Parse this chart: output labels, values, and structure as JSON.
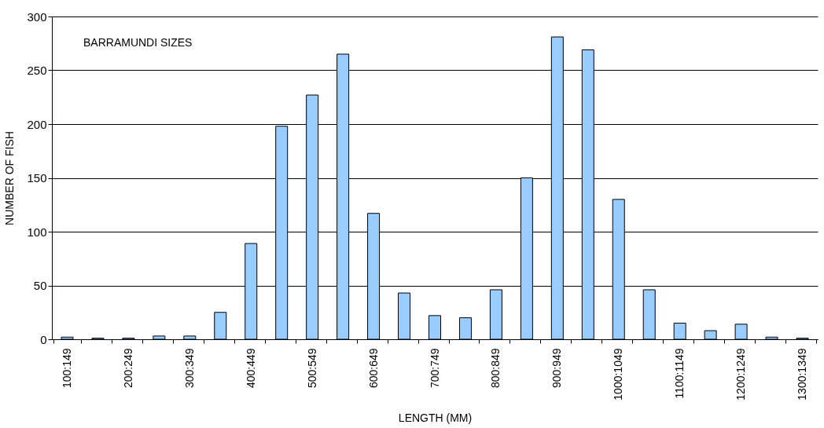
{
  "chart_data": {
    "type": "bar",
    "title": "BARRAMUNDI SIZES",
    "xlabel": "LENGTH (MM)",
    "ylabel": "NUMBER OF FISH",
    "categories": [
      "100:149",
      null,
      "200:249",
      null,
      "300:349",
      null,
      "400:449",
      null,
      "500:549",
      null,
      "600:649",
      null,
      "700:749",
      null,
      "800:849",
      null,
      "900:949",
      null,
      "1000:1049",
      null,
      "1100:1149",
      null,
      "1200:1249",
      null,
      "1300:1349"
    ],
    "values": [
      2,
      1,
      1,
      3,
      3,
      25,
      89,
      198,
      227,
      265,
      117,
      43,
      22,
      20,
      46,
      150,
      281,
      269,
      130,
      46,
      15,
      8,
      14,
      2,
      1
    ],
    "color": "#99ccff",
    "ylim": [
      0,
      300
    ],
    "yticks": [
      0,
      50,
      100,
      150,
      200,
      250,
      300
    ],
    "grid": "y"
  }
}
